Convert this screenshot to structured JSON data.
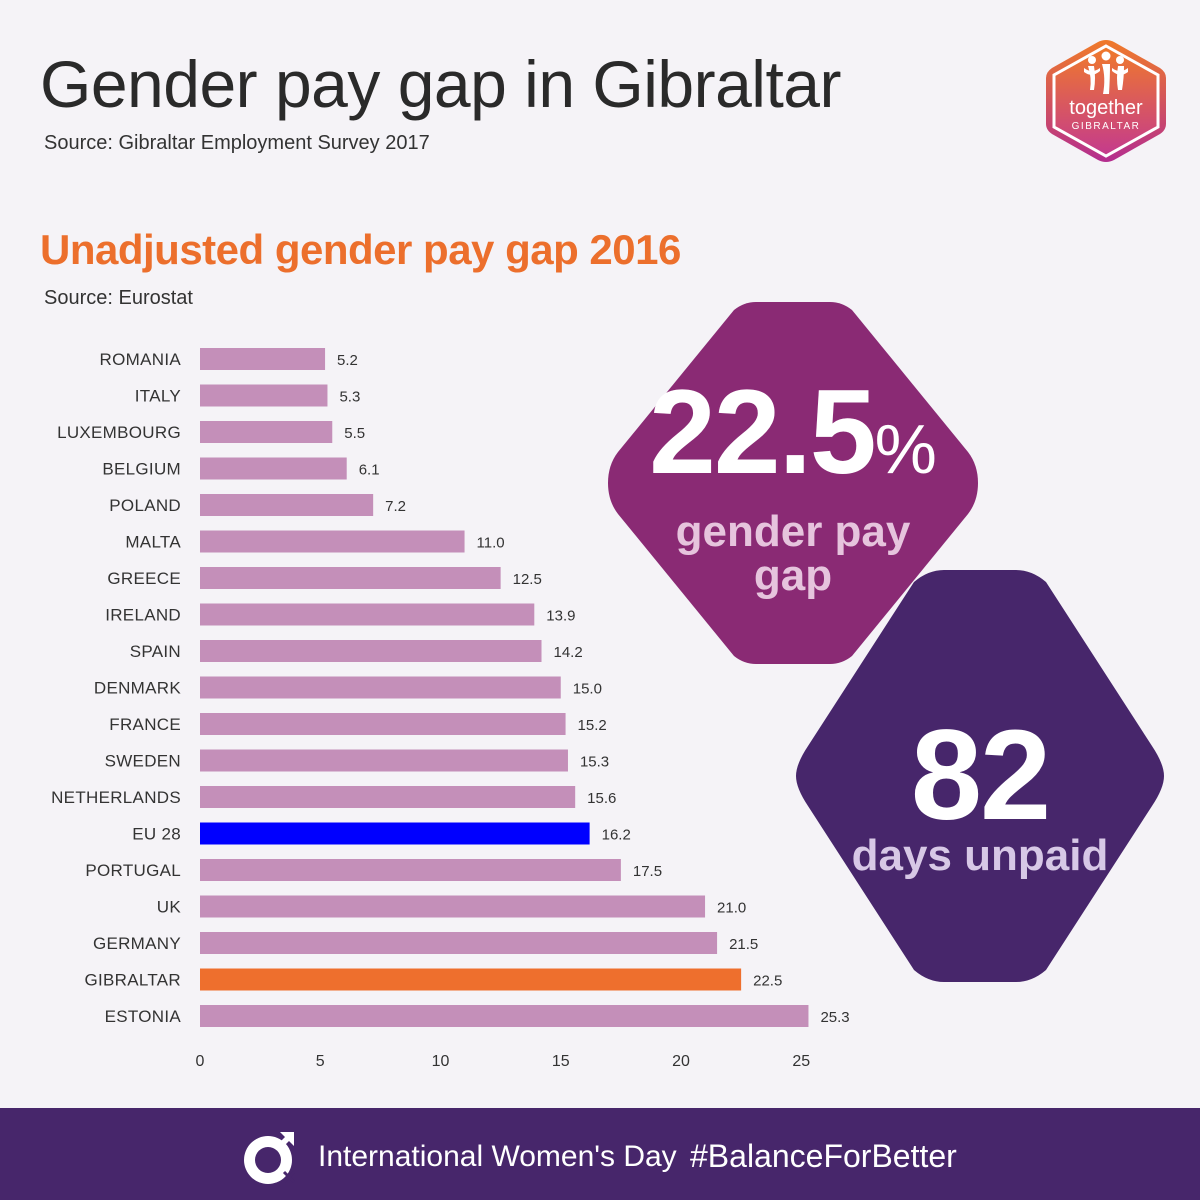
{
  "header": {
    "title": "Gender pay gap in Gibraltar",
    "source": "Source: Gibraltar Employment Survey 2017",
    "logo_line1": "together",
    "logo_line2": "GIBRALTAR"
  },
  "colors": {
    "bar_default": "#c48fb9",
    "bar_eu": "#0000ff",
    "bar_gibraltar": "#ee6f2d",
    "accent_orange": "#ec6f2c",
    "hex_magenta": "#8a2a74",
    "hex_purple": "#47266b",
    "footer": "#47266b"
  },
  "chart_data": {
    "type": "bar",
    "orientation": "horizontal",
    "title": "Unadjusted gender pay gap 2016",
    "source": "Source: Eurostat",
    "categories": [
      "ROMANIA",
      "ITALY",
      "LUXEMBOURG",
      "BELGIUM",
      "POLAND",
      "MALTA",
      "GREECE",
      "IRELAND",
      "SPAIN",
      "DENMARK",
      "FRANCE",
      "SWEDEN",
      "NETHERLANDS",
      "EU 28",
      "PORTUGAL",
      "UK",
      "GERMANY",
      "GIBRALTAR",
      "ESTONIA"
    ],
    "values": [
      5.2,
      5.3,
      5.5,
      6.1,
      7.2,
      11.0,
      12.5,
      13.9,
      14.2,
      15.0,
      15.2,
      15.3,
      15.6,
      16.2,
      17.5,
      21.0,
      21.5,
      22.5,
      25.3
    ],
    "value_labels": [
      "5.2",
      "5.3",
      "5.5",
      "6.1",
      "7.2",
      "11.0",
      "12.5",
      "13.9",
      "14.2",
      "15.0",
      "15.2",
      "15.3",
      "15.6",
      "16.2",
      "17.5",
      "21.0",
      "21.5",
      "22.5",
      "25.3"
    ],
    "highlight": {
      "EU 28": "eu",
      "GIBRALTAR": "gibraltar"
    },
    "xlim": [
      0,
      25.3
    ],
    "xticks": [
      0,
      5,
      10,
      15,
      20,
      25
    ],
    "xticklabels": [
      "0",
      "5",
      "10",
      "15",
      "20",
      "25"
    ],
    "grid": false
  },
  "callouts": {
    "pay_gap": {
      "value": "22.5",
      "unit": "%",
      "label_line1": "gender pay",
      "label_line2": "gap"
    },
    "days": {
      "value": "82",
      "label": "days unpaid"
    }
  },
  "footer": {
    "left_text": "International Women's Day",
    "right_text": "#BalanceForBetter"
  }
}
